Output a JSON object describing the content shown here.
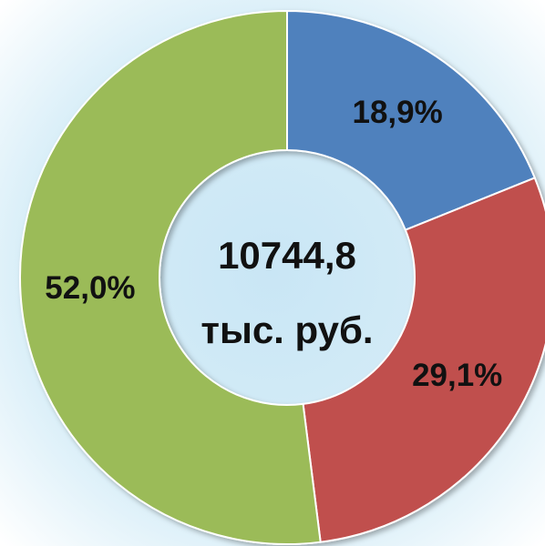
{
  "chart_data": {
    "type": "donut",
    "categories": [
      null,
      null,
      null
    ],
    "values": [
      18.9,
      29.1,
      52.0
    ],
    "value_labels": [
      "18,9%",
      "29,1%",
      "52,0%"
    ],
    "colors": [
      "#4f81bd",
      "#c0504d",
      "#9bbb59"
    ],
    "center_text": [
      "10744,8",
      "тыс. руб."
    ]
  }
}
